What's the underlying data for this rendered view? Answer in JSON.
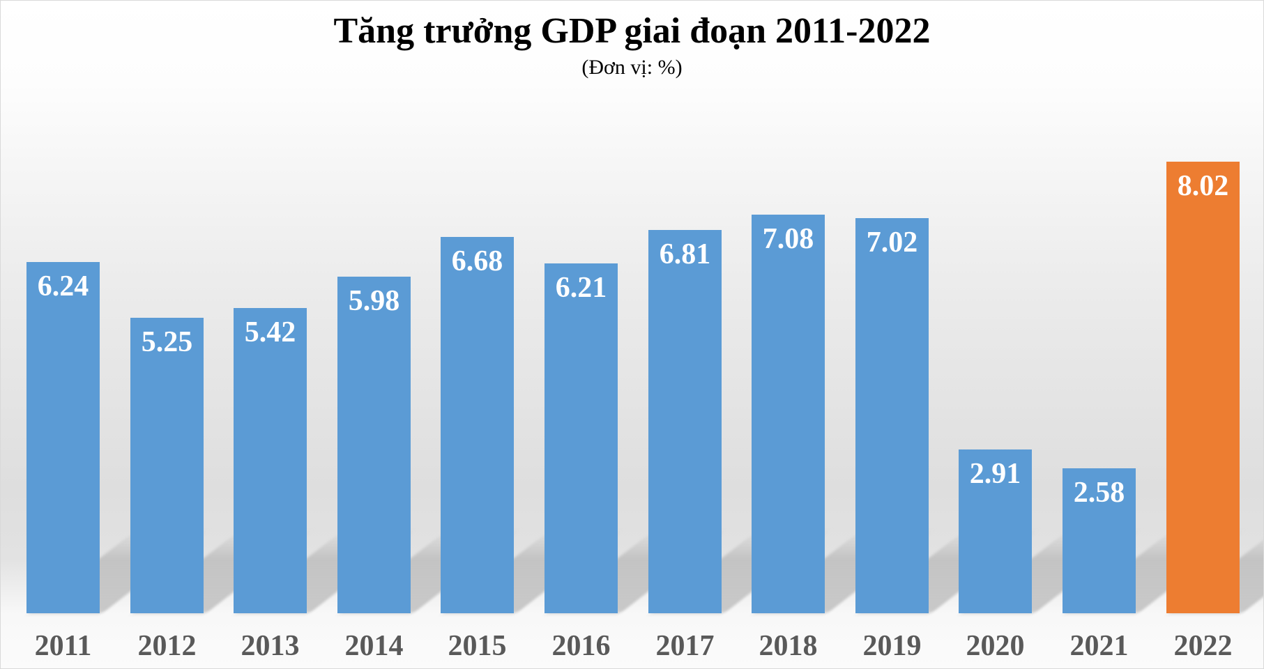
{
  "title": "Tăng trưởng GDP giai đoạn 2011-2022",
  "subtitle": "(Đơn vị: %)",
  "colors": {
    "default_bar": "#5B9BD5",
    "highlight_bar": "#ED7D31",
    "value_label": "#FFFFFF",
    "axis_label": "#595959"
  },
  "chart_data": {
    "type": "bar",
    "title": "Tăng trưởng GDP giai đoạn 2011-2022",
    "subtitle": "(Đơn vị: %)",
    "xlabel": "",
    "ylabel": "",
    "categories": [
      "2011",
      "2012",
      "2013",
      "2014",
      "2015",
      "2016",
      "2017",
      "2018",
      "2019",
      "2020",
      "2021",
      "2022"
    ],
    "values": [
      6.24,
      5.25,
      5.42,
      5.98,
      6.68,
      6.21,
      6.81,
      7.08,
      7.02,
      2.91,
      2.58,
      8.02
    ],
    "value_labels": [
      "6.24",
      "5.25",
      "5.42",
      "5.98",
      "6.68",
      "6.21",
      "6.81",
      "7.08",
      "7.02",
      "2.91",
      "2.58",
      "8.02"
    ],
    "highlight": {
      "category": "2022",
      "color": "#ED7D31"
    },
    "bar_color": "#5B9BD5",
    "ylim": [
      0,
      8.5
    ],
    "grid": false,
    "legend": "none",
    "y_axis_visible": false,
    "data_labels": "inside-top"
  }
}
